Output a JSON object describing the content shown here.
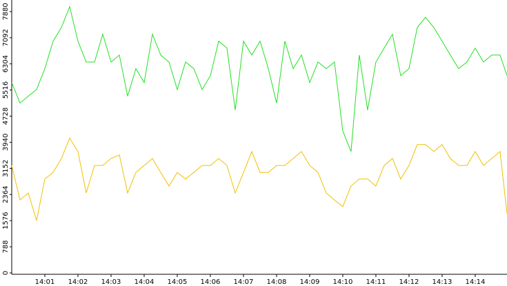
{
  "chart_data": {
    "type": "line",
    "x": [
      0,
      0.25,
      0.5,
      0.75,
      1,
      1.25,
      1.5,
      1.75,
      2,
      2.25,
      2.5,
      2.75,
      3,
      3.25,
      3.5,
      3.75,
      4,
      4.25,
      4.5,
      4.75,
      5,
      5.25,
      5.5,
      5.75,
      6,
      6.25,
      6.5,
      6.75,
      7,
      7.25,
      7.5,
      7.75,
      8,
      8.25,
      8.5,
      8.75,
      9,
      9.25,
      9.5,
      9.75,
      10,
      10.25,
      10.5,
      10.75,
      11,
      11.25,
      11.5,
      11.75,
      12,
      12.25,
      12.5,
      12.75,
      13,
      13.25,
      13.5,
      13.75,
      14,
      14.25,
      14.5,
      14.75,
      14.96
    ],
    "series": [
      {
        "color": "#22e022",
        "values": [
          5740,
          5120,
          5330,
          5530,
          6160,
          6990,
          7400,
          8030,
          6990,
          6360,
          6360,
          7200,
          6360,
          6570,
          5330,
          6160,
          5740,
          7200,
          6570,
          6360,
          5530,
          6360,
          6160,
          5530,
          5950,
          6990,
          6780,
          4910,
          6990,
          6570,
          6990,
          6160,
          5120,
          6990,
          6160,
          6570,
          5740,
          6360,
          6160,
          6360,
          4280,
          3660,
          6570,
          4910,
          6360,
          6780,
          7200,
          5950,
          6160,
          7400,
          7710,
          7400,
          6990,
          6570,
          6160,
          6360,
          6780,
          6360,
          6570,
          6570,
          5950
        ]
      },
      {
        "color": "#f0c000",
        "values": [
          3240,
          2200,
          2410,
          1580,
          2830,
          3030,
          3450,
          4070,
          3660,
          2410,
          3240,
          3240,
          3450,
          3560,
          2410,
          3030,
          3240,
          3450,
          3030,
          2620,
          3030,
          2830,
          3030,
          3240,
          3240,
          3450,
          3240,
          2410,
          3030,
          3660,
          3030,
          3030,
          3240,
          3240,
          3450,
          3660,
          3240,
          3030,
          2410,
          2200,
          2000,
          2620,
          2830,
          2830,
          2620,
          3240,
          3450,
          2830,
          3240,
          3870,
          3870,
          3660,
          3870,
          3450,
          3240,
          3240,
          3660,
          3240,
          3450,
          3660,
          1790
        ]
      }
    ],
    "xlim": [
      0,
      14.96
    ],
    "xticks": [
      {
        "value": 1,
        "label": "14:01"
      },
      {
        "value": 2,
        "label": "14:02"
      },
      {
        "value": 3,
        "label": "14:03"
      },
      {
        "value": 4,
        "label": "14:04"
      },
      {
        "value": 5,
        "label": "14:05"
      },
      {
        "value": 6,
        "label": "14:06"
      },
      {
        "value": 7,
        "label": "14:07"
      },
      {
        "value": 8,
        "label": "14:08"
      },
      {
        "value": 9,
        "label": "14:09"
      },
      {
        "value": 10,
        "label": "14:10"
      },
      {
        "value": 11,
        "label": "14:11"
      },
      {
        "value": 12,
        "label": "14:12"
      },
      {
        "value": 13,
        "label": "14:13"
      },
      {
        "value": 14,
        "label": "14:14"
      }
    ],
    "ylim": [
      0,
      8230
    ],
    "yticks": [
      0,
      788,
      1576,
      2364,
      3152,
      3940,
      4728,
      5516,
      6304,
      7092,
      7880
    ]
  }
}
